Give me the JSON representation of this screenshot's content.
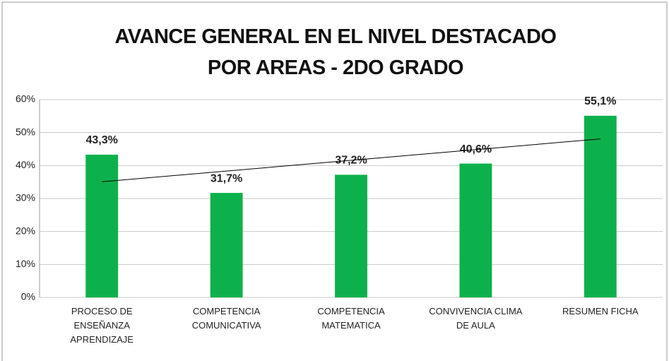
{
  "chart_data": {
    "type": "bar",
    "title": "AVANCE  GENERAL EN EL NIVEL DESTACADO POR AREAS - 2DO GRADO",
    "categories": [
      "PROCESO DE ENSEÑANZA APRENDIZAJE",
      "COMPETENCIA COMUNICATIVA",
      "COMPETENCIA MATEMATICA",
      "CONVIVENCIA CLIMA DE AULA",
      "RESUMEN FICHA"
    ],
    "values": [
      43.3,
      31.7,
      37.2,
      40.6,
      55.1
    ],
    "value_labels": [
      "43,3%",
      "31,7%",
      "37,2%",
      "40,6%",
      "55,1%"
    ],
    "color": "#0db14b",
    "ylim": [
      0,
      60
    ],
    "yticks": [
      {
        "value": 0,
        "label": "0%"
      },
      {
        "value": 10,
        "label": "10%"
      },
      {
        "value": 20,
        "label": "20%"
      },
      {
        "value": 30,
        "label": "30%"
      },
      {
        "value": 40,
        "label": "40%"
      },
      {
        "value": 50,
        "label": "50%"
      },
      {
        "value": 60,
        "label": "60%"
      }
    ],
    "grid": true,
    "trendline": "linear"
  }
}
